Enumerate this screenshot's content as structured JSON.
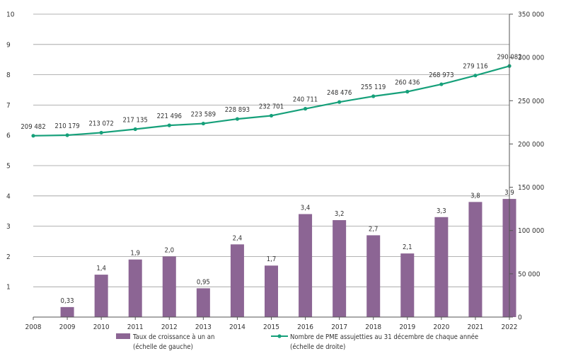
{
  "chart_data": {
    "type": "bar+line",
    "x": [
      "2008",
      "2009",
      "2010",
      "2011",
      "2012",
      "2013",
      "2014",
      "2015",
      "2016",
      "2017",
      "2018",
      "2019",
      "2020",
      "2021",
      "2022"
    ],
    "series": [
      {
        "name": "Taux de croissance à un an",
        "name_line2": "(échelle de gauche)",
        "type": "bar",
        "axis": "left",
        "color": "#8c6594",
        "values": [
          null,
          0.33,
          1.4,
          1.9,
          2.0,
          0.95,
          2.4,
          1.7,
          3.4,
          3.2,
          2.7,
          2.1,
          3.3,
          3.8,
          3.9
        ],
        "labels": [
          "",
          "0,33",
          "1,4",
          "1,9",
          "2,0",
          "0,95",
          "2,4",
          "1,7",
          "3,4",
          "3,2",
          "2,7",
          "2,1",
          "3,3",
          "3,8",
          "3,9"
        ]
      },
      {
        "name": "Nombre de PME assujetties au 31 décembre de chaque année",
        "name_line2": "(échelle de droite)",
        "type": "line",
        "axis": "right",
        "color": "#16a07a",
        "values": [
          209482,
          210179,
          213072,
          217135,
          221496,
          223589,
          228893,
          232701,
          240711,
          248476,
          255119,
          260436,
          268973,
          279116,
          290082
        ],
        "labels": [
          "209 482",
          "210 179",
          "213 072",
          "217 135",
          "221 496",
          "223 589",
          "228 893",
          "232 701",
          "240 711",
          "248 476",
          "255 119",
          "260 436",
          "268 973",
          "279 116",
          "290 082"
        ]
      }
    ],
    "left_axis": {
      "ylim": [
        0,
        10
      ],
      "ticks": [
        "10",
        "9",
        "8",
        "7",
        "6",
        "5",
        "4",
        "3",
        "2",
        "1"
      ],
      "tick_values": [
        10,
        9,
        8,
        7,
        6,
        5,
        4,
        3,
        2,
        1
      ]
    },
    "right_axis": {
      "ylim": [
        0,
        350000
      ],
      "ticks": [
        "350 000",
        "300 000",
        "250 000",
        "200 000",
        "150 000",
        "100 000",
        "50 000",
        "0"
      ],
      "tick_values": [
        350000,
        300000,
        250000,
        200000,
        150000,
        100000,
        50000,
        0
      ]
    },
    "grid": true,
    "legend_position": "bottom"
  }
}
